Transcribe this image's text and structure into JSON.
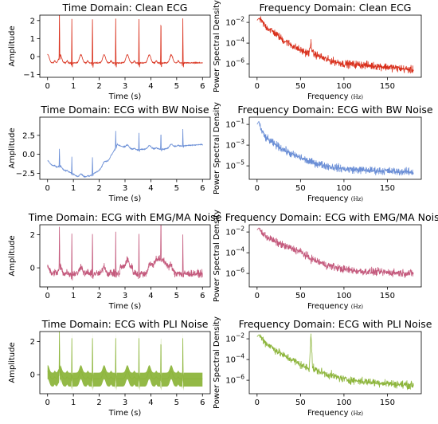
{
  "chart_data": [
    {
      "type": "line",
      "title": "Time Domain: Clean ECG",
      "xlabel": "Time (s)",
      "ylabel": "Amplitude",
      "xlim": [
        -0.3,
        6.3
      ],
      "ylim": [
        -1.15,
        2.3
      ],
      "xticks": [
        0,
        1,
        2,
        3,
        4,
        5,
        6
      ],
      "yticks": [
        -1,
        0,
        1,
        2
      ],
      "color": "#d9301c",
      "signal": "clean",
      "series": [
        {
          "x": [
            0.0,
            0.42,
            0.46,
            0.5,
            0.55,
            0.7,
            0.85,
            0.9,
            0.94,
            0.98,
            1.03,
            1.2,
            1.55,
            1.7,
            1.74,
            1.78,
            1.83,
            2.0,
            2.35,
            2.6,
            2.64,
            2.68,
            2.73,
            2.9,
            3.35,
            3.5,
            3.54,
            3.58,
            3.63,
            3.8,
            4.1,
            4.35,
            4.39,
            4.43,
            4.48,
            4.6,
            4.95,
            5.2,
            5.24,
            5.28,
            5.33,
            5.5,
            6.0
          ],
          "y": [
            -0.45,
            -0.35,
            2.1,
            -0.6,
            -0.3,
            -0.25,
            0.25,
            0.1,
            2.05,
            -0.55,
            -0.2,
            -0.25,
            0.2,
            0.0,
            2.1,
            -0.55,
            -0.25,
            -0.2,
            0.3,
            0.15,
            2.05,
            -0.5,
            -0.2,
            -0.25,
            0.25,
            0.1,
            2.1,
            -0.55,
            -0.25,
            -0.2,
            0.2,
            0.1,
            2.05,
            -0.5,
            -0.25,
            -0.2,
            0.25,
            0.1,
            2.0,
            -0.55,
            -0.2,
            -0.25,
            -0.3
          ]
        }
      ]
    },
    {
      "type": "line",
      "title": "Frequency Domain: Clean ECG",
      "xlabel": "Frequency",
      "xlabel_unit": "(Hz)",
      "ylabel": "Power Spectral Density",
      "yscale": "log",
      "xlim": [
        -9,
        189
      ],
      "ylim": [
        -7.3,
        -1.3
      ],
      "xticks": [
        0,
        50,
        100,
        150
      ],
      "yticks": [
        -2,
        -4,
        -6
      ],
      "color": "#d9301c",
      "spike": 60,
      "series": [
        {
          "x": [
            0,
            2,
            5,
            10,
            20,
            30,
            40,
            50,
            60,
            62,
            64,
            70,
            80,
            100,
            120,
            150,
            180
          ],
          "y_log10": [
            -1.8,
            -1.6,
            -1.9,
            -2.4,
            -3.0,
            -3.7,
            -4.2,
            -4.7,
            -5.0,
            -3.9,
            -5.0,
            -5.2,
            -5.6,
            -6.0,
            -6.1,
            -6.3,
            -6.6
          ]
        }
      ]
    },
    {
      "type": "line",
      "title": "Time Domain: ECG with BW Noise",
      "xlabel": "Time (s)",
      "ylabel": "Amplitude",
      "xlim": [
        -0.3,
        6.3
      ],
      "ylim": [
        -3.3,
        4.9
      ],
      "xticks": [
        0,
        1,
        2,
        3,
        4,
        5,
        6
      ],
      "yticks": [
        -2.5,
        0.0,
        2.5
      ],
      "ytick_labels": [
        "−2.5",
        "0.0",
        "2.5"
      ],
      "color": "#6a8ed6",
      "signal": "bw",
      "series": [
        {
          "x": [
            0.0,
            0.3,
            0.5,
            0.9,
            1.2,
            1.6,
            2.0,
            2.4,
            2.7,
            3.0,
            3.5,
            4.0,
            4.5,
            5.0,
            5.5,
            6.0
          ],
          "y": [
            -0.9,
            -1.3,
            -1.6,
            -2.1,
            -2.7,
            -2.6,
            -1.8,
            -0.3,
            1.6,
            1.2,
            0.9,
            1.1,
            1.0,
            1.4,
            1.5,
            1.6
          ]
        }
      ]
    },
    {
      "type": "line",
      "title": "Frequency Domain: ECG with BW Noise",
      "xlabel": "Frequency",
      "xlabel_unit": "(Hz)",
      "ylabel": "Power Spectral Density",
      "yscale": "log",
      "xlim": [
        -9,
        189
      ],
      "ylim": [
        -6.3,
        -0.3
      ],
      "xticks": [
        0,
        50,
        100,
        150
      ],
      "yticks": [
        -1,
        -3,
        -5
      ],
      "color": "#6a8ed6",
      "series": [
        {
          "x": [
            0,
            2,
            5,
            10,
            20,
            30,
            40,
            50,
            60,
            80,
            100,
            120,
            150,
            180
          ],
          "y_log10": [
            -1.0,
            -0.7,
            -1.6,
            -2.3,
            -2.9,
            -3.4,
            -3.9,
            -4.2,
            -4.6,
            -5.0,
            -5.3,
            -5.4,
            -5.5,
            -5.6
          ]
        }
      ]
    },
    {
      "type": "line",
      "title": "Time Domain: ECG with EMG/MA Noise",
      "xlabel": "Time (s)",
      "ylabel": "Amplitude",
      "xlim": [
        -0.3,
        6.3
      ],
      "ylim": [
        -1.15,
        2.6
      ],
      "xticks": [
        0,
        1,
        2,
        3,
        4,
        5,
        6
      ],
      "yticks": [
        0,
        2
      ],
      "color": "#c45a7d",
      "signal": "emg",
      "series": [
        {
          "x": [
            0.0,
            0.46,
            0.94,
            1.74,
            2.64,
            3.54,
            4.39,
            5.0,
            5.24,
            6.0
          ],
          "y": [
            -0.4,
            2.1,
            2.0,
            2.1,
            2.0,
            2.1,
            2.3,
            1.7,
            2.0,
            -0.5
          ]
        }
      ]
    },
    {
      "type": "line",
      "title": "Frequency Domain: ECG with EMG/MA Noise",
      "xlabel": "Frequency",
      "xlabel_unit": "(Hz)",
      "ylabel": "Power Spectral Density",
      "yscale": "log",
      "xlim": [
        -9,
        189
      ],
      "ylim": [
        -7.3,
        -1.3
      ],
      "xticks": [
        0,
        50,
        100,
        150
      ],
      "yticks": [
        -2,
        -4,
        -6
      ],
      "color": "#c45a7d",
      "series": [
        {
          "x": [
            0,
            2,
            5,
            10,
            20,
            30,
            40,
            50,
            60,
            80,
            100,
            120,
            150,
            180
          ],
          "y_log10": [
            -1.8,
            -1.6,
            -2.0,
            -2.4,
            -2.9,
            -3.3,
            -3.6,
            -3.9,
            -4.5,
            -5.2,
            -5.6,
            -5.8,
            -5.9,
            -6.0
          ]
        }
      ]
    },
    {
      "type": "line",
      "title": "Time Domain: ECG with PLI Noise",
      "xlabel": "Time (s)",
      "ylabel": "Amplitude",
      "xlim": [
        -0.3,
        6.3
      ],
      "ylim": [
        -1.15,
        2.6
      ],
      "xticks": [
        0,
        1,
        2,
        3,
        4,
        5,
        6
      ],
      "yticks": [
        0,
        2
      ],
      "color": "#8db53c",
      "signal": "pli",
      "series": [
        {
          "x": [
            0.0,
            0.46,
            0.94,
            1.74,
            2.64,
            3.54,
            4.39,
            5.24,
            6.0
          ],
          "y": [
            -0.6,
            2.5,
            2.4,
            2.5,
            2.4,
            2.5,
            2.4,
            2.4,
            -0.6
          ]
        }
      ]
    },
    {
      "type": "line",
      "title": "Frequency Domain: ECG with PLI Noise",
      "xlabel": "Frequency",
      "xlabel_unit": "(Hz)",
      "ylabel": "Power Spectral Density",
      "yscale": "log",
      "xlim": [
        -9,
        189
      ],
      "ylim": [
        -7.3,
        -1.3
      ],
      "xticks": [
        0,
        50,
        100,
        150
      ],
      "yticks": [
        -2,
        -4,
        -6
      ],
      "color": "#8db53c",
      "spike": 60,
      "series": [
        {
          "x": [
            0,
            2,
            5,
            10,
            20,
            30,
            40,
            50,
            60,
            62,
            64,
            70,
            80,
            100,
            120,
            150,
            180
          ],
          "y_log10": [
            -1.8,
            -1.6,
            -1.9,
            -2.4,
            -3.0,
            -3.6,
            -4.0,
            -4.5,
            -4.9,
            -1.5,
            -4.9,
            -5.1,
            -5.4,
            -5.9,
            -6.1,
            -6.3,
            -6.5
          ]
        }
      ]
    }
  ]
}
